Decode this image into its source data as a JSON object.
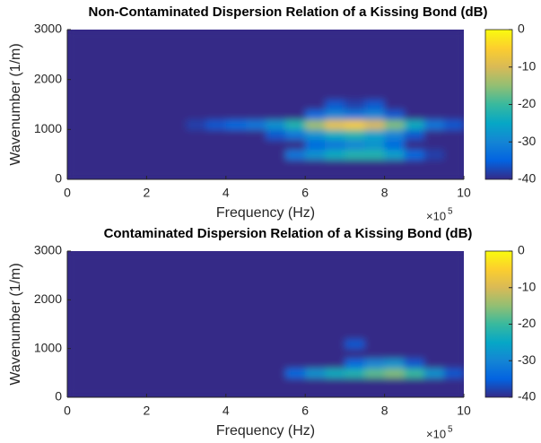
{
  "chart_data": [
    {
      "type": "heatmap",
      "title": "Non-Contaminated Dispersion Relation of a Kissing Bond (dB)",
      "xlabel": "Frequency (Hz)",
      "ylabel": "Wavenumber (1/m)",
      "x_offset_label": "×10",
      "x_offset_exponent": "5",
      "xlim": [
        0,
        1000000
      ],
      "ylim": [
        0,
        3000
      ],
      "xticks": [
        {
          "value": 0,
          "label": "0"
        },
        {
          "value": 200000,
          "label": "2"
        },
        {
          "value": 400000,
          "label": "4"
        },
        {
          "value": 600000,
          "label": "6"
        },
        {
          "value": 800000,
          "label": "8"
        },
        {
          "value": 1000000,
          "label": "10"
        }
      ],
      "yticks": [
        0,
        1000,
        2000,
        3000
      ],
      "clim": [
        -40,
        0
      ],
      "cticks": [
        0,
        -10,
        -20,
        -30,
        -40
      ],
      "colormap": [
        "#352a87",
        "#0363e1",
        "#1485d4",
        "#06a7c6",
        "#38b99e",
        "#92bf73",
        "#d9ba56",
        "#fcce2e",
        "#f9fb0e"
      ],
      "xbins": [
        0,
        50000,
        100000,
        150000,
        200000,
        250000,
        300000,
        350000,
        400000,
        450000,
        500000,
        550000,
        600000,
        650000,
        700000,
        750000,
        800000,
        850000,
        900000,
        950000,
        1000000
      ],
      "ybins": [
        0,
        200,
        400,
        600,
        800,
        1000,
        1200,
        1400,
        1600,
        1800,
        2000,
        2200,
        2400,
        2600,
        2800,
        3000
      ],
      "z": [
        [
          -40,
          -40,
          -40,
          -40,
          -40,
          -40,
          -40,
          -40,
          -40,
          -40,
          -40,
          -40,
          -40,
          -40,
          -40,
          -40,
          -40,
          -40,
          -40,
          -40
        ],
        [
          -40,
          -40,
          -40,
          -40,
          -40,
          -40,
          -40,
          -40,
          -40,
          -40,
          -40,
          -40,
          -40,
          -40,
          -40,
          -40,
          -40,
          -40,
          -40,
          -40
        ],
        [
          -40,
          -40,
          -40,
          -40,
          -40,
          -40,
          -40,
          -40,
          -40,
          -40,
          -40,
          -32,
          -28,
          -24,
          -22,
          -22,
          -26,
          -34,
          -38,
          -40
        ],
        [
          -40,
          -40,
          -40,
          -40,
          -40,
          -40,
          -40,
          -40,
          -40,
          -40,
          -40,
          -40,
          -34,
          -32,
          -30,
          -28,
          -34,
          -40,
          -40,
          -40
        ],
        [
          -40,
          -40,
          -40,
          -40,
          -40,
          -40,
          -40,
          -40,
          -40,
          -40,
          -36,
          -32,
          -28,
          -24,
          -22,
          -26,
          -30,
          -36,
          -40,
          -40
        ],
        [
          -40,
          -40,
          -40,
          -40,
          -40,
          -40,
          -38,
          -36,
          -34,
          -32,
          -28,
          -22,
          -14,
          -8,
          -6,
          -10,
          -16,
          -24,
          -32,
          -36
        ],
        [
          -40,
          -40,
          -40,
          -40,
          -40,
          -40,
          -40,
          -40,
          -40,
          -40,
          -40,
          -40,
          -34,
          -30,
          -32,
          -30,
          -36,
          -40,
          -40,
          -40
        ],
        [
          -40,
          -40,
          -40,
          -40,
          -40,
          -40,
          -40,
          -40,
          -40,
          -40,
          -40,
          -40,
          -40,
          -36,
          -38,
          -36,
          -40,
          -40,
          -40,
          -40
        ],
        [
          -40,
          -40,
          -40,
          -40,
          -40,
          -40,
          -40,
          -40,
          -40,
          -40,
          -40,
          -40,
          -40,
          -40,
          -40,
          -40,
          -40,
          -40,
          -40,
          -40
        ],
        [
          -40,
          -40,
          -40,
          -40,
          -40,
          -40,
          -40,
          -40,
          -40,
          -40,
          -40,
          -40,
          -40,
          -40,
          -40,
          -40,
          -40,
          -40,
          -40,
          -40
        ],
        [
          -40,
          -40,
          -40,
          -40,
          -40,
          -40,
          -40,
          -40,
          -40,
          -40,
          -40,
          -40,
          -40,
          -40,
          -40,
          -40,
          -40,
          -40,
          -40,
          -40
        ],
        [
          -40,
          -40,
          -40,
          -40,
          -40,
          -40,
          -40,
          -40,
          -40,
          -40,
          -40,
          -40,
          -40,
          -40,
          -40,
          -40,
          -40,
          -40,
          -40,
          -40
        ],
        [
          -40,
          -40,
          -40,
          -40,
          -40,
          -40,
          -40,
          -40,
          -40,
          -40,
          -40,
          -40,
          -40,
          -40,
          -40,
          -40,
          -40,
          -40,
          -40,
          -40
        ],
        [
          -40,
          -40,
          -40,
          -40,
          -40,
          -40,
          -40,
          -40,
          -40,
          -40,
          -40,
          -40,
          -40,
          -40,
          -40,
          -40,
          -40,
          -40,
          -40,
          -40
        ],
        [
          -40,
          -40,
          -40,
          -40,
          -40,
          -40,
          -40,
          -40,
          -40,
          -40,
          -40,
          -40,
          -40,
          -40,
          -40,
          -40,
          -40,
          -40,
          -40,
          -40
        ]
      ]
    },
    {
      "type": "heatmap",
      "title": "Contaminated Dispersion Relation of a Kissing Bond (dB)",
      "xlabel": "Frequency (Hz)",
      "ylabel": "Wavenumber (1/m)",
      "x_offset_label": "×10",
      "x_offset_exponent": "5",
      "xlim": [
        0,
        1000000
      ],
      "ylim": [
        0,
        3000
      ],
      "xticks": [
        {
          "value": 0,
          "label": "0"
        },
        {
          "value": 200000,
          "label": "2"
        },
        {
          "value": 400000,
          "label": "4"
        },
        {
          "value": 600000,
          "label": "6"
        },
        {
          "value": 800000,
          "label": "8"
        },
        {
          "value": 1000000,
          "label": "10"
        }
      ],
      "yticks": [
        0,
        1000,
        2000,
        3000
      ],
      "clim": [
        -40,
        0
      ],
      "cticks": [
        0,
        -10,
        -20,
        -30,
        -40
      ],
      "colormap": [
        "#352a87",
        "#0363e1",
        "#1485d4",
        "#06a7c6",
        "#38b99e",
        "#92bf73",
        "#d9ba56",
        "#fcce2e",
        "#f9fb0e"
      ],
      "xbins": [
        0,
        50000,
        100000,
        150000,
        200000,
        250000,
        300000,
        350000,
        400000,
        450000,
        500000,
        550000,
        600000,
        650000,
        700000,
        750000,
        800000,
        850000,
        900000,
        950000,
        1000000
      ],
      "ybins": [
        0,
        200,
        400,
        600,
        800,
        1000,
        1200,
        1400,
        1600,
        1800,
        2000,
        2200,
        2400,
        2600,
        2800,
        3000
      ],
      "z": [
        [
          -40,
          -40,
          -40,
          -40,
          -40,
          -40,
          -40,
          -40,
          -40,
          -40,
          -40,
          -40,
          -40,
          -40,
          -40,
          -40,
          -40,
          -40,
          -40,
          -40
        ],
        [
          -40,
          -40,
          -40,
          -40,
          -40,
          -40,
          -40,
          -40,
          -40,
          -40,
          -40,
          -40,
          -40,
          -40,
          -40,
          -40,
          -40,
          -40,
          -40,
          -40
        ],
        [
          -40,
          -40,
          -40,
          -40,
          -40,
          -40,
          -40,
          -40,
          -40,
          -40,
          -40,
          -34,
          -28,
          -24,
          -22,
          -18,
          -16,
          -20,
          -28,
          -36
        ],
        [
          -40,
          -40,
          -40,
          -40,
          -40,
          -40,
          -40,
          -40,
          -40,
          -40,
          -40,
          -40,
          -40,
          -40,
          -34,
          -30,
          -28,
          -36,
          -40,
          -40
        ],
        [
          -40,
          -40,
          -40,
          -40,
          -40,
          -40,
          -40,
          -40,
          -40,
          -40,
          -40,
          -40,
          -40,
          -40,
          -40,
          -40,
          -40,
          -40,
          -40,
          -40
        ],
        [
          -40,
          -40,
          -40,
          -40,
          -40,
          -40,
          -40,
          -40,
          -40,
          -40,
          -40,
          -40,
          -40,
          -40,
          -36,
          -40,
          -40,
          -40,
          -40,
          -40
        ],
        [
          -40,
          -40,
          -40,
          -40,
          -40,
          -40,
          -40,
          -40,
          -40,
          -40,
          -40,
          -40,
          -40,
          -40,
          -40,
          -40,
          -40,
          -40,
          -40,
          -40
        ],
        [
          -40,
          -40,
          -40,
          -40,
          -40,
          -40,
          -40,
          -40,
          -40,
          -40,
          -40,
          -40,
          -40,
          -40,
          -40,
          -40,
          -40,
          -40,
          -40,
          -40
        ],
        [
          -40,
          -40,
          -40,
          -40,
          -40,
          -40,
          -40,
          -40,
          -40,
          -40,
          -40,
          -40,
          -40,
          -40,
          -40,
          -40,
          -40,
          -40,
          -40,
          -40
        ],
        [
          -40,
          -40,
          -40,
          -40,
          -40,
          -40,
          -40,
          -40,
          -40,
          -40,
          -40,
          -40,
          -40,
          -40,
          -40,
          -40,
          -40,
          -40,
          -40,
          -40
        ],
        [
          -40,
          -40,
          -40,
          -40,
          -40,
          -40,
          -40,
          -40,
          -40,
          -40,
          -40,
          -40,
          -40,
          -40,
          -40,
          -40,
          -40,
          -40,
          -40,
          -40
        ],
        [
          -40,
          -40,
          -40,
          -40,
          -40,
          -40,
          -40,
          -40,
          -40,
          -40,
          -40,
          -40,
          -40,
          -40,
          -40,
          -40,
          -40,
          -40,
          -40,
          -40
        ],
        [
          -40,
          -40,
          -40,
          -40,
          -40,
          -40,
          -40,
          -40,
          -40,
          -40,
          -40,
          -40,
          -40,
          -40,
          -40,
          -40,
          -40,
          -40,
          -40,
          -40
        ],
        [
          -40,
          -40,
          -40,
          -40,
          -40,
          -40,
          -40,
          -40,
          -40,
          -40,
          -40,
          -40,
          -40,
          -40,
          -40,
          -40,
          -40,
          -40,
          -40,
          -40
        ],
        [
          -40,
          -40,
          -40,
          -40,
          -40,
          -40,
          -40,
          -40,
          -40,
          -40,
          -40,
          -40,
          -40,
          -40,
          -40,
          -40,
          -40,
          -40,
          -40,
          -40
        ]
      ]
    }
  ]
}
